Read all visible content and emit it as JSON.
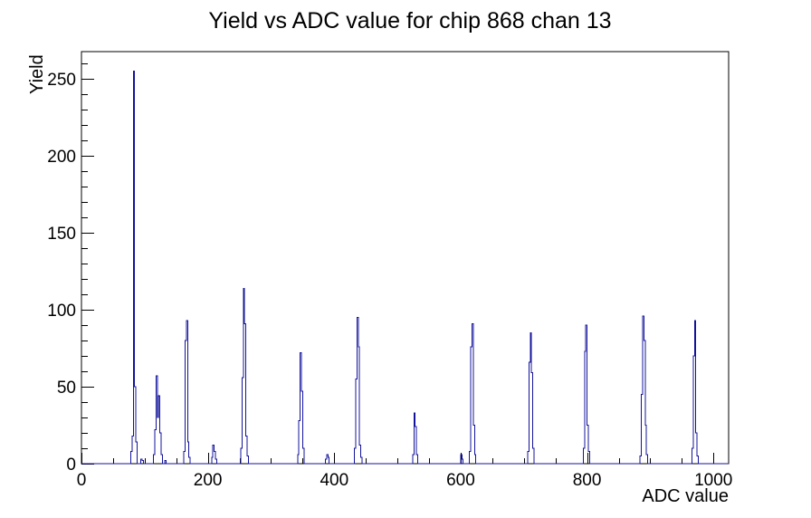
{
  "page": {
    "background": "#ffffff"
  },
  "chart_data": {
    "type": "bar",
    "title": "Yield vs ADC value for chip 868 chan 13",
    "xlabel": "ADC value",
    "ylabel": "Yield",
    "xlim": [
      0,
      1024
    ],
    "ylim": [
      0,
      267.75
    ],
    "x_major_ticks": [
      0,
      200,
      400,
      600,
      800,
      1000
    ],
    "x_minor_step": 50,
    "y_major_ticks": [
      0,
      50,
      100,
      150,
      200,
      250
    ],
    "y_minor_step": 10,
    "grid": false,
    "legend": false,
    "bin_width": 2,
    "line_color": "#13139b",
    "frame_color": "#000000",
    "bins": [
      [
        78,
        8
      ],
      [
        80,
        18
      ],
      [
        82,
        255
      ],
      [
        84,
        50
      ],
      [
        86,
        14
      ],
      [
        94,
        3
      ],
      [
        96,
        2
      ],
      [
        114,
        6
      ],
      [
        116,
        22
      ],
      [
        118,
        57
      ],
      [
        120,
        30
      ],
      [
        122,
        44
      ],
      [
        124,
        20
      ],
      [
        126,
        6
      ],
      [
        132,
        2
      ],
      [
        162,
        8
      ],
      [
        164,
        80
      ],
      [
        166,
        93
      ],
      [
        168,
        14
      ],
      [
        170,
        4
      ],
      [
        206,
        4
      ],
      [
        208,
        12
      ],
      [
        210,
        8
      ],
      [
        212,
        3
      ],
      [
        252,
        10
      ],
      [
        254,
        56
      ],
      [
        256,
        114
      ],
      [
        258,
        91
      ],
      [
        260,
        18
      ],
      [
        262,
        5
      ],
      [
        342,
        6
      ],
      [
        344,
        28
      ],
      [
        346,
        72
      ],
      [
        348,
        47
      ],
      [
        350,
        10
      ],
      [
        386,
        3
      ],
      [
        388,
        6
      ],
      [
        390,
        4
      ],
      [
        432,
        10
      ],
      [
        434,
        55
      ],
      [
        436,
        95
      ],
      [
        438,
        76
      ],
      [
        440,
        12
      ],
      [
        442,
        4
      ],
      [
        524,
        6
      ],
      [
        526,
        33
      ],
      [
        528,
        24
      ],
      [
        530,
        6
      ],
      [
        600,
        6
      ],
      [
        602,
        3
      ],
      [
        614,
        8
      ],
      [
        616,
        76
      ],
      [
        618,
        91
      ],
      [
        620,
        25
      ],
      [
        622,
        6
      ],
      [
        706,
        8
      ],
      [
        708,
        66
      ],
      [
        710,
        85
      ],
      [
        712,
        59
      ],
      [
        714,
        10
      ],
      [
        794,
        10
      ],
      [
        796,
        73
      ],
      [
        798,
        90
      ],
      [
        800,
        25
      ],
      [
        802,
        8
      ],
      [
        884,
        5
      ],
      [
        886,
        45
      ],
      [
        888,
        96
      ],
      [
        890,
        80
      ],
      [
        892,
        25
      ],
      [
        894,
        6
      ],
      [
        966,
        10
      ],
      [
        968,
        70
      ],
      [
        970,
        93
      ],
      [
        972,
        20
      ],
      [
        974,
        5
      ]
    ]
  }
}
